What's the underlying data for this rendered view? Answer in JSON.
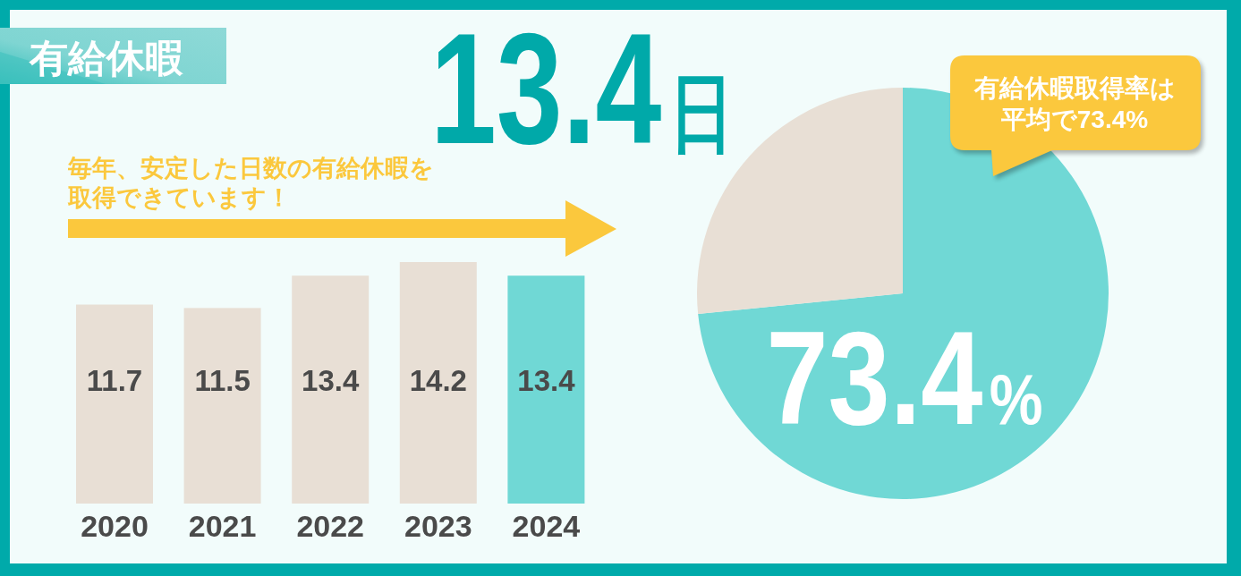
{
  "chart_data": [
    {
      "type": "bar",
      "title": "有給休暇",
      "subtitle": "13.4日",
      "annotations": [
        "毎年、安定した日数の有給休暇を取得できています！"
      ],
      "categories": [
        "2020",
        "2021",
        "2022",
        "2023",
        "2024"
      ],
      "values": [
        11.7,
        11.5,
        13.4,
        14.2,
        13.4
      ],
      "colors": [
        "#e8dfd5",
        "#e8dfd5",
        "#e8dfd5",
        "#e8dfd5",
        "#70d8d5"
      ],
      "data_labels": true
    },
    {
      "type": "pie",
      "categories": [
        null,
        null
      ],
      "values": [
        73.4,
        26.6
      ],
      "colors": [
        "#70d8d5",
        "#e8dfd5"
      ],
      "value_labels": [
        "73.4%",
        null
      ],
      "annotations": [
        "有給休暇取得率は平均で73.4%"
      ]
    }
  ]
}
